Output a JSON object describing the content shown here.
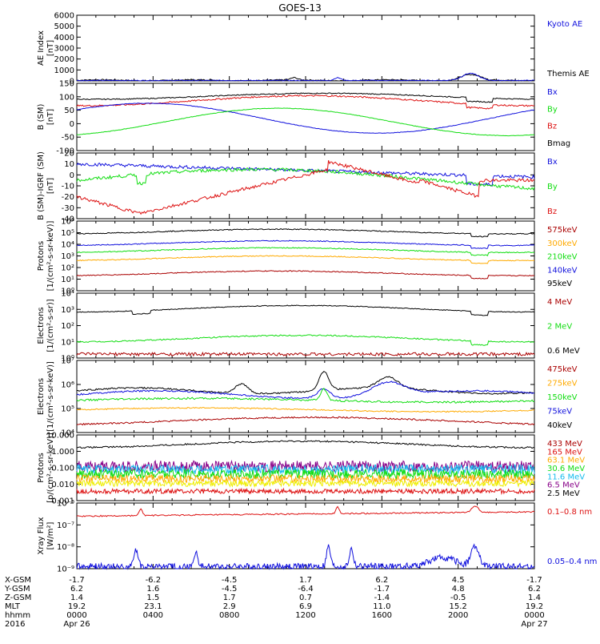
{
  "title": "GOES-13",
  "colors": {
    "black": "#000000",
    "red": "#dd1111",
    "green": "#11dd11",
    "blue": "#1111dd",
    "orange": "#ffaa00",
    "darkred": "#aa0000",
    "yellow": "#eeee00",
    "cyan": "#11bbee",
    "purple": "#880088"
  },
  "chart_data": [
    {
      "type": "line",
      "id": "ae",
      "ylabel": [
        "AE Index",
        "[nT]"
      ],
      "ylim": [
        0,
        6000
      ],
      "yticks": [
        "6000",
        "5000",
        "4000",
        "3000",
        "2000",
        "1000",
        "0"
      ],
      "series": [
        {
          "name": "Kyoto AE",
          "color": "#1111dd"
        },
        {
          "name": "Themis AE",
          "color": "#000000"
        }
      ],
      "shape": "AE near 0–200 nT all day with small bursts (~300 nT) near 12:00, 14:00 and ~700 nT around 20:30"
    },
    {
      "type": "line",
      "id": "bsm",
      "ylabel": [
        "B (SM)",
        "[nT]"
      ],
      "ylim": [
        -120,
        150
      ],
      "yticks": [
        "150",
        "100",
        "50",
        "0",
        "-50",
        "-100"
      ],
      "series": [
        {
          "name": "Bx",
          "color": "#1111dd"
        },
        {
          "name": "By",
          "color": "#11dd11"
        },
        {
          "name": "Bz",
          "color": "#dd1111"
        },
        {
          "name": "Bmag",
          "color": "#000000"
        }
      ],
      "key_values": {
        "Bmag": [
          98,
          85,
          110,
          115,
          112,
          80,
          98
        ],
        "Bz": [
          85,
          60,
          90,
          105,
          100,
          75,
          88
        ],
        "Bx_hours": [
          0,
          4,
          8,
          12,
          16,
          20,
          24
        ],
        "Bx": [
          30,
          65,
          40,
          -20,
          -50,
          -10,
          25
        ],
        "By": [
          -55,
          -20,
          40,
          50,
          -10,
          -50,
          -55
        ]
      }
    },
    {
      "type": "line",
      "id": "bigrf",
      "ylabel": [
        "B (SM)-IGRF (SM)",
        "[nT]"
      ],
      "ylim": [
        -40,
        20
      ],
      "yticks": [
        "20",
        "10",
        "0",
        "-10",
        "-20",
        "-30",
        "-40"
      ],
      "series": [
        {
          "name": "Bx",
          "color": "#1111dd"
        },
        {
          "name": "By",
          "color": "#11dd11"
        },
        {
          "name": "Bz",
          "color": "#dd1111"
        }
      ]
    },
    {
      "type": "line",
      "id": "protons1",
      "log": true,
      "ylabel": [
        "Protons",
        "[1/(cm²-s-sr-keV)]"
      ],
      "ylim": [
        0,
        6
      ],
      "yticks": [
        "10⁶",
        "10⁵",
        "10⁴",
        "10³",
        "10²",
        "10¹",
        "10⁰"
      ],
      "series": [
        {
          "name": "575keV",
          "color": "#aa0000"
        },
        {
          "name": "300keV",
          "color": "#ffaa00"
        },
        {
          "name": "210keV",
          "color": "#11dd11"
        },
        {
          "name": "140keV",
          "color": "#1111dd"
        },
        {
          "name": "95keV",
          "color": "#000000"
        }
      ]
    },
    {
      "type": "line",
      "id": "electrons1",
      "log": true,
      "ylabel": [
        "Electrons",
        "[1/(cm²-s-sr)]"
      ],
      "ylim": [
        0,
        5
      ],
      "yticks": [
        "10⁴",
        "10³",
        "10²",
        "10¹",
        "10⁰"
      ],
      "series": [
        {
          "name": "4 MeV",
          "color": "#aa0000"
        },
        {
          "name": "2 MeV",
          "color": "#11dd11"
        },
        {
          "name": "0.6 MeV",
          "color": "#000000"
        }
      ]
    },
    {
      "type": "line",
      "id": "electrons2",
      "log": true,
      "ylabel": [
        "Electrons",
        "[1/(cm²-s-sr-keV)]"
      ],
      "ylim": [
        3.7,
        7.5
      ],
      "yticks": [
        "10⁷",
        "10⁶",
        "10⁵",
        "10⁴"
      ],
      "series": [
        {
          "name": "475keV",
          "color": "#aa0000"
        },
        {
          "name": "275keV",
          "color": "#ffaa00"
        },
        {
          "name": "150keV",
          "color": "#11dd11"
        },
        {
          "name": "75keV",
          "color": "#1111dd"
        },
        {
          "name": "40keV",
          "color": "#000000"
        }
      ]
    },
    {
      "type": "line",
      "id": "protons2",
      "log": true,
      "ylabel": [
        "Protons",
        "[p/(cm²-s-sr-keV)]"
      ],
      "ylim": [
        -3,
        1.2
      ],
      "yticks": [
        "10.000",
        "1.000",
        "0.100",
        "0.010",
        "0.001"
      ],
      "series": [
        {
          "name": "433 MeV",
          "color": "#aa0000"
        },
        {
          "name": "165 MeV",
          "color": "#dd1111"
        },
        {
          "name": "63.1 MeV",
          "color": "#ffaa00"
        },
        {
          "name": "30.6 MeV",
          "color": "#11dd11"
        },
        {
          "name": "11.6 MeV",
          "color": "#11bbee"
        },
        {
          "name": "6.5 MeV",
          "color": "#880088"
        },
        {
          "name": "2.5 MeV",
          "color": "#000000"
        }
      ]
    },
    {
      "type": "line",
      "id": "xray",
      "log": true,
      "ylabel": [
        "Xray Flux",
        "[W/m²]"
      ],
      "ylim": [
        -9,
        -6
      ],
      "yticks": [
        "10⁻⁶",
        "10⁻⁷",
        "10⁻⁸",
        "10⁻⁹"
      ],
      "series": [
        {
          "name": "0.1–0.8 nm",
          "color": "#dd1111"
        },
        {
          "name": "0.05–0.4 nm",
          "color": "#1111dd"
        }
      ]
    }
  ],
  "xaxis": {
    "rows": [
      {
        "label": "X-GSM",
        "values": [
          "-1.7",
          "-6.2",
          "-4.5",
          "1.7",
          "6.2",
          "4.5",
          "-1.7"
        ]
      },
      {
        "label": "Y-GSM",
        "values": [
          "6.2",
          "1.6",
          "-4.5",
          "-6.4",
          "-1.7",
          "4.8",
          "6.2"
        ]
      },
      {
        "label": "Z-GSM",
        "values": [
          "1.4",
          "1.5",
          "1.7",
          "0.7",
          "-1.4",
          "-0.5",
          "1.4"
        ]
      },
      {
        "label": "MLT",
        "values": [
          "19.2",
          "23.1",
          "2.9",
          "6.9",
          "11.0",
          "15.2",
          "19.2"
        ]
      },
      {
        "label": "hhmm",
        "values": [
          "0000",
          "0400",
          "0800",
          "1200",
          "1600",
          "2000",
          "0000"
        ]
      },
      {
        "label": "2016",
        "values": [
          "Apr 26",
          "",
          "",
          "",
          "",
          "",
          "Apr 27"
        ]
      }
    ]
  }
}
